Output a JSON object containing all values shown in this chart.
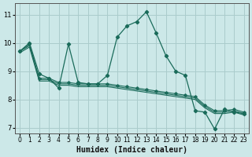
{
  "xlabel": "Humidex (Indice chaleur)",
  "ylabel": "",
  "background_color": "#cce8e8",
  "grid_color": "#aacccc",
  "line_color": "#1a6b5a",
  "xlim": [
    -0.5,
    23.5
  ],
  "ylim": [
    6.8,
    11.4
  ],
  "yticks": [
    7,
    8,
    9,
    10,
    11
  ],
  "xticks": [
    0,
    1,
    2,
    3,
    4,
    5,
    6,
    7,
    8,
    9,
    10,
    11,
    12,
    13,
    14,
    15,
    16,
    17,
    18,
    19,
    20,
    21,
    22,
    23
  ],
  "series1_x": [
    0,
    1,
    2,
    3,
    4,
    5,
    6,
    7,
    8,
    9,
    10,
    11,
    12,
    13,
    14,
    15,
    16,
    17,
    18,
    19,
    20,
    21,
    22,
    23
  ],
  "series1_y": [
    9.7,
    10.0,
    8.9,
    8.75,
    8.4,
    9.95,
    8.6,
    8.55,
    8.55,
    8.85,
    10.2,
    10.6,
    10.75,
    11.1,
    10.35,
    9.55,
    9.0,
    8.85,
    7.6,
    7.55,
    6.95,
    7.65,
    7.55,
    7.5
  ],
  "series2_x": [
    0,
    1,
    2,
    3,
    4,
    5,
    6,
    7,
    8,
    9,
    10,
    11,
    12,
    13,
    14,
    15,
    16,
    17,
    18,
    19,
    20,
    21,
    22,
    23
  ],
  "series2_y": [
    9.7,
    9.95,
    8.75,
    8.75,
    8.6,
    8.6,
    8.55,
    8.55,
    8.55,
    8.55,
    8.5,
    8.45,
    8.4,
    8.35,
    8.3,
    8.25,
    8.2,
    8.15,
    8.1,
    7.8,
    7.6,
    7.6,
    7.65,
    7.55
  ],
  "series3_x": [
    0,
    1,
    2,
    3,
    4,
    5,
    6,
    7,
    8,
    9,
    10,
    11,
    12,
    13,
    14,
    15,
    16,
    17,
    18,
    19,
    20,
    21,
    22,
    23
  ],
  "series3_y": [
    9.7,
    9.9,
    8.7,
    8.7,
    8.55,
    8.55,
    8.5,
    8.5,
    8.5,
    8.5,
    8.45,
    8.4,
    8.35,
    8.3,
    8.25,
    8.2,
    8.15,
    8.1,
    8.05,
    7.75,
    7.55,
    7.55,
    7.6,
    7.5
  ],
  "series4_x": [
    0,
    1,
    2,
    3,
    4,
    5,
    6,
    7,
    8,
    9,
    10,
    11,
    12,
    13,
    14,
    15,
    16,
    17,
    18,
    19,
    20,
    21,
    22,
    23
  ],
  "series4_y": [
    9.65,
    9.85,
    8.65,
    8.65,
    8.5,
    8.5,
    8.45,
    8.45,
    8.45,
    8.45,
    8.4,
    8.35,
    8.3,
    8.25,
    8.2,
    8.15,
    8.1,
    8.05,
    8.0,
    7.7,
    7.5,
    7.5,
    7.55,
    7.45
  ]
}
